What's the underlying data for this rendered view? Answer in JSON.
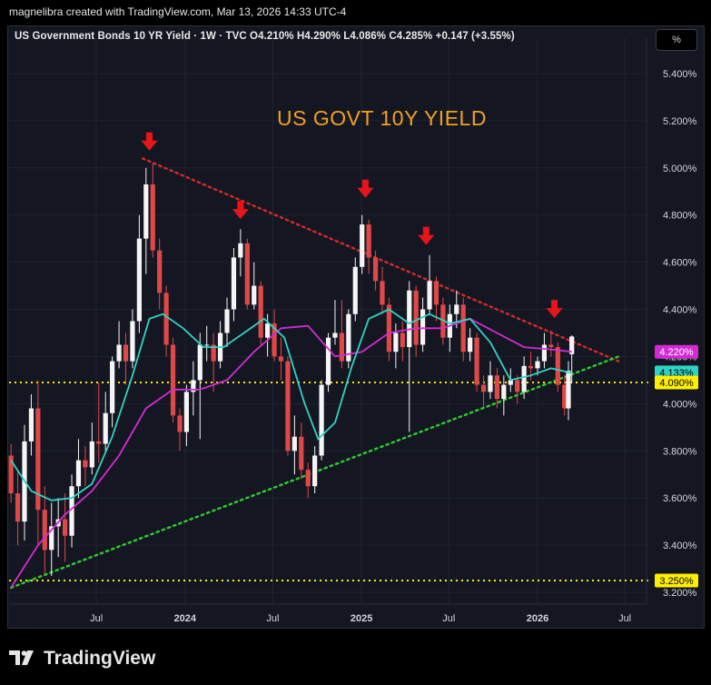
{
  "header": {
    "created_by": "magnelibra created with TradingView.com, Mar 13, 2026 14:33 UTC-4"
  },
  "legend": {
    "text": "US Government Bonds 10 YR Yield · 1W · TVC  O4.210%  H4.290%  L4.086%  C4.285%  +0.147 (+3.55%)"
  },
  "toolbar": {
    "scale_mode": "%"
  },
  "annotation": {
    "title": "US GOVT 10Y YIELD"
  },
  "footer": {
    "brand": "TradingView"
  },
  "colors": {
    "background": "#141722",
    "up_candle": "#f5f5f5",
    "down_candle": "#e04848",
    "resistance_line": "#d42a2a",
    "support_line": "#2ecc2e",
    "horizontal_level": "#ffee00",
    "ma_fast": "#2fd3c4",
    "ma_slow": "#d42ad4",
    "arrow": "#e8141c",
    "title_text": "#f0a020"
  },
  "chart_data": {
    "type": "candlestick",
    "title": "US Government Bonds 10 YR Yield",
    "timeframe": "1W",
    "y_unit": "%",
    "ylim": [
      3.15,
      5.55
    ],
    "y_ticks": [
      "5.400%",
      "5.200%",
      "5.000%",
      "4.800%",
      "4.600%",
      "4.400%",
      "4.200%",
      "4.000%",
      "3.800%",
      "3.600%",
      "3.400%",
      "3.200%"
    ],
    "x_ticks": [
      "Jul",
      "2024",
      "Jul",
      "2025",
      "Jul",
      "2026",
      "Jul"
    ],
    "grid": true,
    "last_price": {
      "open": 4.21,
      "high": 4.29,
      "low": 4.086,
      "close": 4.285,
      "change": 0.147,
      "change_pct": 3.55
    },
    "price_labels": [
      {
        "label": "4.220%",
        "value": 4.22,
        "color": "#d42ad4"
      },
      {
        "label": "4.133%",
        "value": 4.133,
        "color": "#2fd3c4"
      },
      {
        "label": "4.090%",
        "value": 4.09,
        "color": "#ffee00"
      },
      {
        "label": "3.250%",
        "value": 3.25,
        "color": "#ffee00"
      }
    ],
    "horizontal_lines": [
      {
        "value": 4.09,
        "style": "dotted",
        "color": "#ffee00"
      },
      {
        "value": 3.25,
        "style": "dotted",
        "color": "#ffee00"
      }
    ],
    "trendlines": [
      {
        "name": "resistance",
        "from": [
          "2023-10-05",
          5.04
        ],
        "to": [
          "2026-06-18",
          4.18
        ],
        "style": "dotted",
        "color": "#d42a2a"
      },
      {
        "name": "support",
        "from": [
          "2023-01-05",
          3.22
        ],
        "to": [
          "2026-06-18",
          4.2
        ],
        "style": "dotted",
        "color": "#2ecc2e"
      }
    ],
    "arrows": [
      {
        "date": "2023-10-19",
        "value": 5.05
      },
      {
        "date": "2024-04-25",
        "value": 4.76
      },
      {
        "date": "2025-01-09",
        "value": 4.85
      },
      {
        "date": "2025-05-15",
        "value": 4.65
      },
      {
        "date": "2026-02-05",
        "value": 4.34
      }
    ],
    "ma_fast": [
      [
        "2023-01-05",
        3.76
      ],
      [
        "2023-02-16",
        3.63
      ],
      [
        "2023-03-30",
        3.59
      ],
      [
        "2023-05-11",
        3.6
      ],
      [
        "2023-06-22",
        3.66
      ],
      [
        "2023-08-03",
        3.86
      ],
      [
        "2023-09-14",
        4.12
      ],
      [
        "2023-10-19",
        4.36
      ],
      [
        "2023-11-16",
        4.38
      ],
      [
        "2023-12-28",
        4.32
      ],
      [
        "2024-02-08",
        4.24
      ],
      [
        "2024-03-21",
        4.24
      ],
      [
        "2024-05-02",
        4.3
      ],
      [
        "2024-06-13",
        4.36
      ],
      [
        "2024-07-25",
        4.28
      ],
      [
        "2024-09-05",
        4.0
      ],
      [
        "2024-10-03",
        3.85
      ],
      [
        "2024-11-07",
        3.92
      ],
      [
        "2024-12-12",
        4.16
      ],
      [
        "2025-01-16",
        4.36
      ],
      [
        "2025-02-27",
        4.4
      ],
      [
        "2025-04-10",
        4.34
      ],
      [
        "2025-05-22",
        4.38
      ],
      [
        "2025-07-03",
        4.34
      ],
      [
        "2025-08-14",
        4.36
      ],
      [
        "2025-09-25",
        4.26
      ],
      [
        "2025-11-06",
        4.1
      ],
      [
        "2025-12-18",
        4.12
      ],
      [
        "2026-01-29",
        4.15
      ],
      [
        "2026-03-13",
        4.13
      ]
    ],
    "ma_slow": [
      [
        "2023-01-05",
        3.22
      ],
      [
        "2023-03-02",
        3.4
      ],
      [
        "2023-04-27",
        3.53
      ],
      [
        "2023-06-22",
        3.63
      ],
      [
        "2023-08-17",
        3.78
      ],
      [
        "2023-10-12",
        3.98
      ],
      [
        "2023-12-07",
        4.06
      ],
      [
        "2024-02-01",
        4.06
      ],
      [
        "2024-03-28",
        4.1
      ],
      [
        "2024-05-23",
        4.22
      ],
      [
        "2024-07-18",
        4.32
      ],
      [
        "2024-09-12",
        4.33
      ],
      [
        "2024-11-07",
        4.2
      ],
      [
        "2025-01-02",
        4.22
      ],
      [
        "2025-02-27",
        4.3
      ],
      [
        "2025-04-24",
        4.32
      ],
      [
        "2025-06-19",
        4.32
      ],
      [
        "2025-08-14",
        4.36
      ],
      [
        "2025-10-09",
        4.3
      ],
      [
        "2025-12-04",
        4.24
      ],
      [
        "2026-01-29",
        4.23
      ],
      [
        "2026-03-13",
        4.22
      ]
    ],
    "candles_ohlc": [
      [
        "2023-01-05",
        3.78,
        3.83,
        3.58,
        3.62
      ],
      [
        "2023-01-19",
        3.62,
        3.72,
        3.4,
        3.5
      ],
      [
        "2023-02-02",
        3.5,
        3.91,
        3.42,
        3.84
      ],
      [
        "2023-02-16",
        3.84,
        4.04,
        3.78,
        3.98
      ],
      [
        "2023-03-02",
        3.98,
        4.1,
        3.4,
        3.55
      ],
      [
        "2023-03-16",
        3.55,
        3.65,
        3.28,
        3.38
      ],
      [
        "2023-03-30",
        3.38,
        3.58,
        3.27,
        3.48
      ],
      [
        "2023-04-13",
        3.48,
        3.6,
        3.35,
        3.51
      ],
      [
        "2023-04-27",
        3.51,
        3.62,
        3.33,
        3.44
      ],
      [
        "2023-05-11",
        3.44,
        3.7,
        3.39,
        3.65
      ],
      [
        "2023-05-25",
        3.65,
        3.85,
        3.6,
        3.76
      ],
      [
        "2023-06-08",
        3.76,
        3.82,
        3.65,
        3.73
      ],
      [
        "2023-06-22",
        3.73,
        3.92,
        3.7,
        3.84
      ],
      [
        "2023-07-06",
        3.84,
        4.09,
        3.75,
        3.83
      ],
      [
        "2023-07-20",
        3.83,
        4.05,
        3.8,
        3.96
      ],
      [
        "2023-08-03",
        3.96,
        4.2,
        3.9,
        4.18
      ],
      [
        "2023-08-17",
        4.18,
        4.35,
        4.15,
        4.25
      ],
      [
        "2023-08-31",
        4.25,
        4.3,
        4.08,
        4.18
      ],
      [
        "2023-09-14",
        4.18,
        4.4,
        4.15,
        4.35
      ],
      [
        "2023-09-28",
        4.35,
        4.8,
        4.3,
        4.7
      ],
      [
        "2023-10-12",
        4.7,
        5.0,
        4.55,
        4.93
      ],
      [
        "2023-10-26",
        4.93,
        5.02,
        4.62,
        4.65
      ],
      [
        "2023-11-09",
        4.65,
        4.7,
        4.4,
        4.47
      ],
      [
        "2023-11-23",
        4.47,
        4.5,
        4.2,
        4.25
      ],
      [
        "2023-12-07",
        4.25,
        4.28,
        3.92,
        3.95
      ],
      [
        "2023-12-21",
        3.95,
        3.98,
        3.8,
        3.88
      ],
      [
        "2024-01-04",
        3.88,
        4.08,
        3.82,
        4.05
      ],
      [
        "2024-01-18",
        4.05,
        4.18,
        3.95,
        4.1
      ],
      [
        "2024-02-01",
        4.1,
        4.3,
        3.85,
        4.25
      ],
      [
        "2024-02-15",
        4.25,
        4.33,
        4.18,
        4.25
      ],
      [
        "2024-02-29",
        4.25,
        4.3,
        4.05,
        4.18
      ],
      [
        "2024-03-14",
        4.18,
        4.35,
        4.15,
        4.3
      ],
      [
        "2024-03-28",
        4.3,
        4.45,
        4.24,
        4.4
      ],
      [
        "2024-04-11",
        4.4,
        4.66,
        4.35,
        4.62
      ],
      [
        "2024-04-25",
        4.62,
        4.74,
        4.54,
        4.68
      ],
      [
        "2024-05-09",
        4.68,
        4.7,
        4.4,
        4.42
      ],
      [
        "2024-05-23",
        4.42,
        4.6,
        4.4,
        4.5
      ],
      [
        "2024-06-06",
        4.5,
        4.52,
        4.25,
        4.28
      ],
      [
        "2024-06-20",
        4.28,
        4.38,
        4.2,
        4.34
      ],
      [
        "2024-07-04",
        4.34,
        4.4,
        4.18,
        4.2
      ],
      [
        "2024-07-18",
        4.2,
        4.28,
        4.1,
        4.18
      ],
      [
        "2024-08-01",
        4.18,
        4.2,
        3.78,
        3.8
      ],
      [
        "2024-08-15",
        3.8,
        3.95,
        3.7,
        3.86
      ],
      [
        "2024-08-29",
        3.86,
        3.92,
        3.68,
        3.72
      ],
      [
        "2024-09-12",
        3.72,
        3.75,
        3.6,
        3.65
      ],
      [
        "2024-09-26",
        3.65,
        3.82,
        3.62,
        3.78
      ],
      [
        "2024-10-10",
        3.78,
        4.1,
        3.76,
        4.08
      ],
      [
        "2024-10-24",
        4.08,
        4.3,
        4.05,
        4.28
      ],
      [
        "2024-11-07",
        4.28,
        4.44,
        4.25,
        4.3
      ],
      [
        "2024-11-21",
        4.3,
        4.44,
        4.15,
        4.18
      ],
      [
        "2024-12-05",
        4.18,
        4.4,
        4.15,
        4.38
      ],
      [
        "2024-12-19",
        4.38,
        4.62,
        4.35,
        4.58
      ],
      [
        "2025-01-02",
        4.58,
        4.8,
        4.55,
        4.76
      ],
      [
        "2025-01-16",
        4.76,
        4.78,
        4.55,
        4.62
      ],
      [
        "2025-01-30",
        4.62,
        4.65,
        4.48,
        4.52
      ],
      [
        "2025-02-13",
        4.52,
        4.58,
        4.38,
        4.42
      ],
      [
        "2025-02-27",
        4.42,
        4.45,
        4.18,
        4.22
      ],
      [
        "2025-03-13",
        4.22,
        4.34,
        4.15,
        4.3
      ],
      [
        "2025-03-27",
        4.3,
        4.35,
        4.18,
        4.24
      ],
      [
        "2025-04-10",
        4.24,
        4.52,
        3.88,
        4.48
      ],
      [
        "2025-04-24",
        4.48,
        4.5,
        4.2,
        4.25
      ],
      [
        "2025-05-08",
        4.25,
        4.45,
        4.22,
        4.4
      ],
      [
        "2025-05-22",
        4.4,
        4.63,
        4.38,
        4.52
      ],
      [
        "2025-06-05",
        4.52,
        4.54,
        4.35,
        4.42
      ],
      [
        "2025-06-19",
        4.42,
        4.45,
        4.25,
        4.28
      ],
      [
        "2025-07-03",
        4.28,
        4.42,
        4.22,
        4.38
      ],
      [
        "2025-07-17",
        4.38,
        4.48,
        4.32,
        4.42
      ],
      [
        "2025-07-31",
        4.42,
        4.45,
        4.18,
        4.22
      ],
      [
        "2025-08-14",
        4.22,
        4.32,
        4.18,
        4.28
      ],
      [
        "2025-08-28",
        4.28,
        4.3,
        4.05,
        4.08
      ],
      [
        "2025-09-11",
        4.08,
        4.12,
        3.98,
        4.05
      ],
      [
        "2025-09-25",
        4.05,
        4.18,
        4.02,
        4.12
      ],
      [
        "2025-10-09",
        4.12,
        4.15,
        3.98,
        4.02
      ],
      [
        "2025-10-23",
        4.02,
        4.12,
        3.95,
        4.08
      ],
      [
        "2025-11-06",
        4.08,
        4.15,
        4.05,
        4.1
      ],
      [
        "2025-11-20",
        4.1,
        4.12,
        4.0,
        4.05
      ],
      [
        "2025-12-04",
        4.05,
        4.2,
        4.02,
        4.16
      ],
      [
        "2025-12-18",
        4.16,
        4.22,
        4.1,
        4.15
      ],
      [
        "2026-01-01",
        4.15,
        4.2,
        4.12,
        4.18
      ],
      [
        "2026-01-15",
        4.18,
        4.3,
        4.15,
        4.25
      ],
      [
        "2026-01-29",
        4.25,
        4.31,
        4.2,
        4.24
      ],
      [
        "2026-02-12",
        4.24,
        4.26,
        4.05,
        4.08
      ],
      [
        "2026-02-26",
        4.08,
        4.12,
        3.95,
        3.98
      ],
      [
        "2026-03-06",
        3.98,
        4.18,
        3.93,
        4.14
      ],
      [
        "2026-03-13",
        4.21,
        4.29,
        4.086,
        4.285
      ]
    ]
  }
}
